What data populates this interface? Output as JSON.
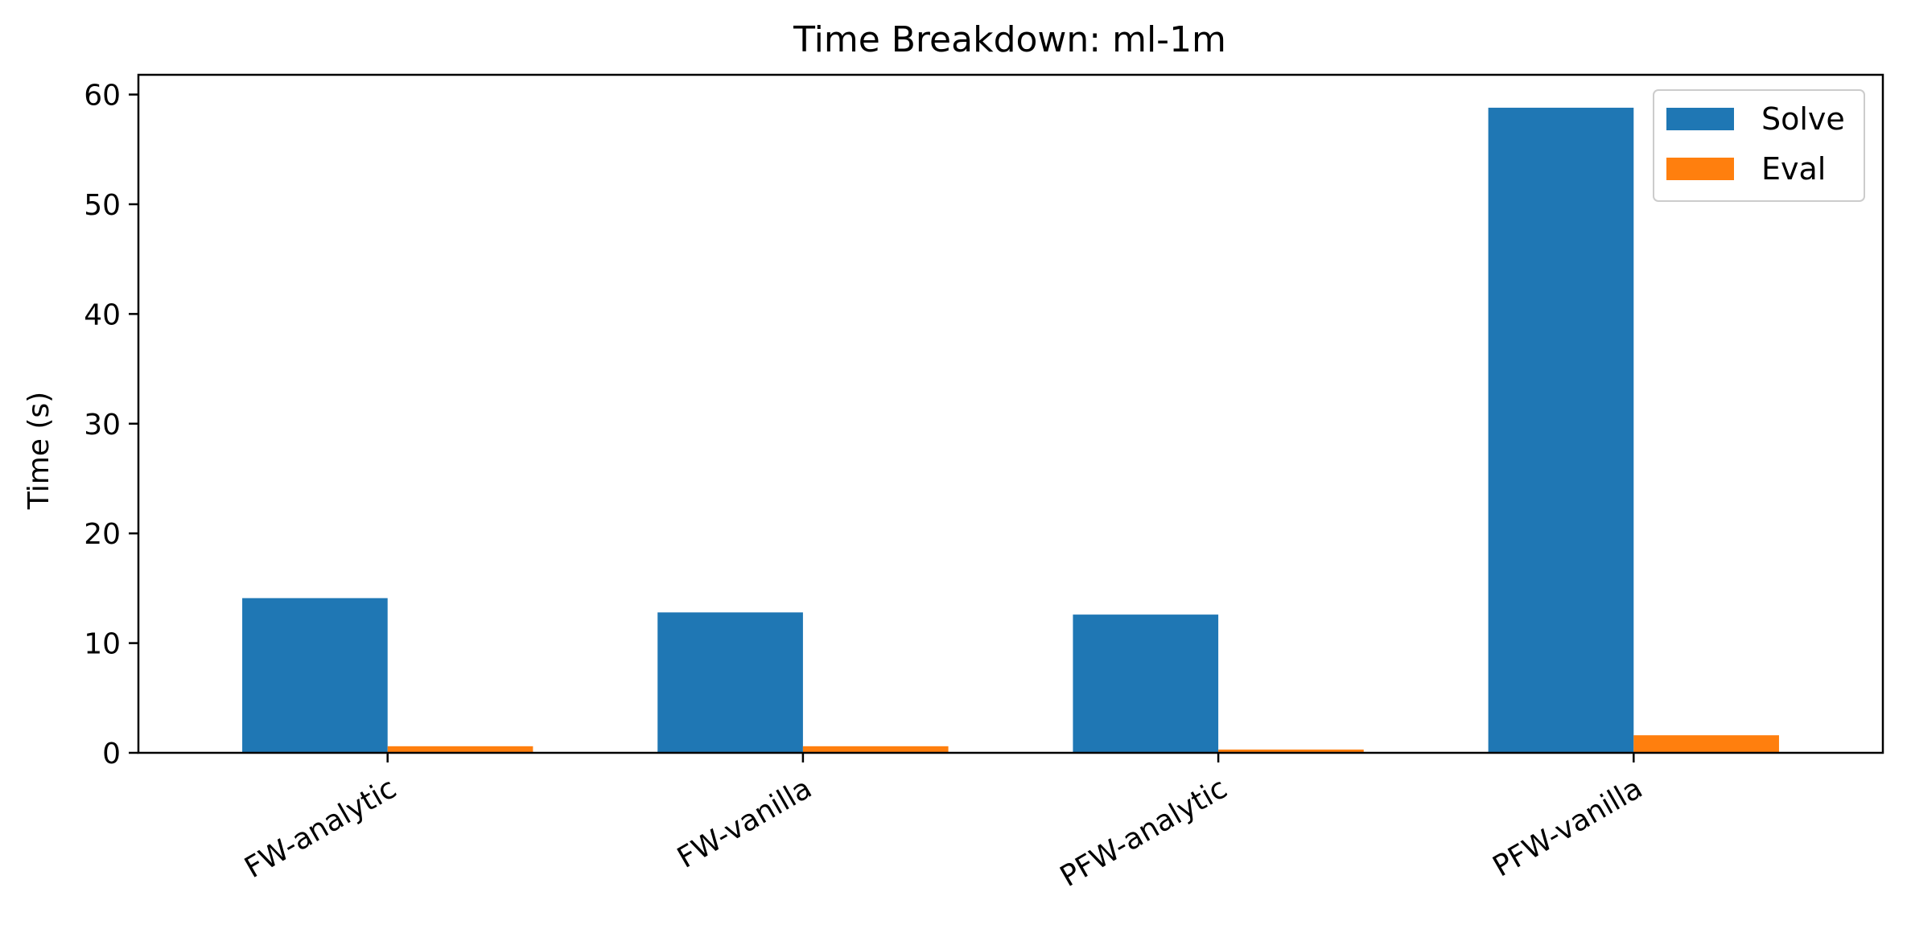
{
  "chart_data": {
    "type": "bar",
    "title": "Time Breakdown: ml-1m",
    "xlabel": "",
    "ylabel": "Time (s)",
    "categories": [
      "FW-analytic",
      "FW-vanilla",
      "PFW-analytic",
      "PFW-vanilla"
    ],
    "series": [
      {
        "name": "Solve",
        "color": "#1f77b4",
        "values": [
          14.1,
          12.8,
          12.6,
          58.8
        ]
      },
      {
        "name": "Eval",
        "color": "#ff7f0e",
        "values": [
          0.6,
          0.6,
          0.3,
          1.6
        ]
      }
    ],
    "ylim": [
      0,
      61.8
    ],
    "yticks": [
      0,
      10,
      20,
      30,
      40,
      50,
      60
    ],
    "grid": false,
    "legend_position": "top-right"
  }
}
